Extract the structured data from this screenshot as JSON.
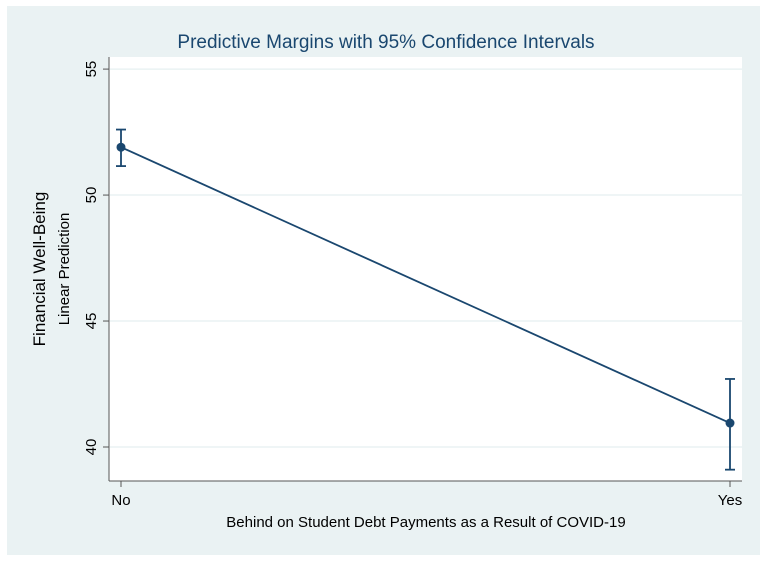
{
  "chart_data": {
    "type": "line",
    "title": "Predictive Margins with 95% Confidence Intervals",
    "xlabel": "Behind on Student Debt Payments as a Result of COVID-19",
    "ylabel": [
      "Financial Well-Being",
      "Linear Prediction"
    ],
    "categories": [
      "No",
      "Yes"
    ],
    "values": [
      51.9,
      40.95
    ],
    "ci_lower": [
      51.15,
      39.1
    ],
    "ci_upper": [
      52.6,
      42.7
    ],
    "yticks": [
      40,
      45,
      50,
      55
    ],
    "ylim": [
      38.65,
      55.48
    ],
    "grid": true,
    "colors": {
      "series": "#1a476f",
      "background": "#eaf2f3",
      "plot": "#ffffff",
      "grid": "#eaf2f3",
      "title": "#1a476f"
    }
  }
}
